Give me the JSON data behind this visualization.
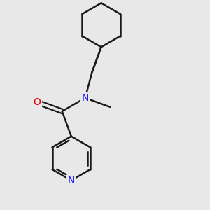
{
  "background_color": "#e8e8e8",
  "bond_color": "#1a1a1a",
  "nitrogen_color": "#2020ff",
  "oxygen_color": "#dd0000",
  "line_width": 1.8,
  "figsize": [
    3.0,
    3.0
  ],
  "dpi": 100,
  "xlim": [
    0.0,
    5.5
  ],
  "ylim": [
    -0.3,
    5.5
  ]
}
